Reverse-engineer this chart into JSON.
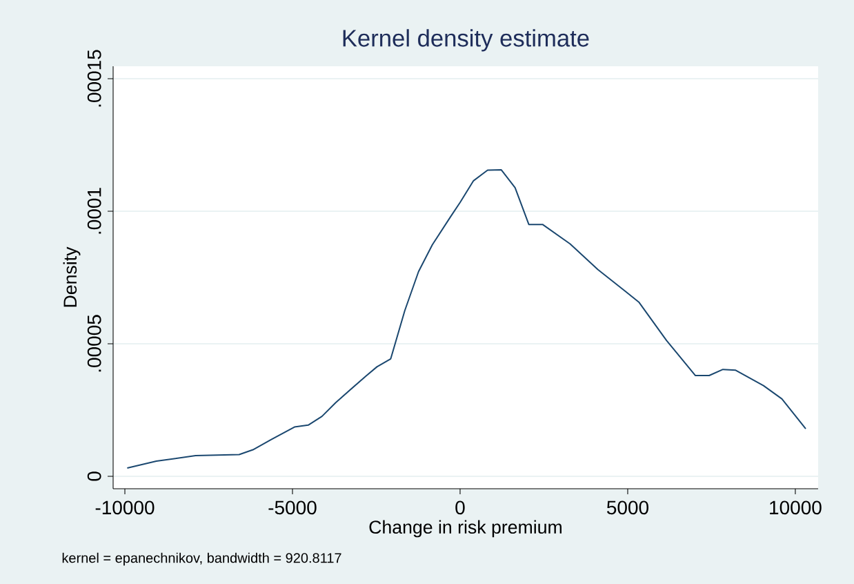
{
  "chart_data": {
    "type": "line",
    "title": "Kernel density estimate",
    "xlabel": "Change in risk premium",
    "ylabel": "Density",
    "annotations": [
      "kernel = epanechnikov, bandwidth = 920.8117"
    ],
    "x": [
      -9930,
      -9060,
      -7890,
      -6590,
      -6180,
      -5630,
      -4940,
      -4530,
      -4120,
      -3710,
      -2820,
      -2480,
      -2070,
      -1650,
      -1240,
      -830,
      -280,
      0,
      400,
      820,
      1230,
      1640,
      2050,
      2460,
      3280,
      4110,
      4930,
      5340,
      6160,
      7020,
      7430,
      7840,
      8220,
      9050,
      9600,
      10310
    ],
    "values": [
      3.1e-06,
      5.7e-06,
      7.8e-06,
      8.2e-06,
      1e-05,
      1.39e-05,
      1.86e-05,
      1.93e-05,
      2.26e-05,
      2.78e-05,
      3.77e-05,
      4.13e-05,
      4.43e-05,
      6.25e-05,
      7.72e-05,
      8.73e-05,
      9.8e-05,
      0.0001033,
      0.0001115,
      0.0001155,
      0.0001156,
      0.0001089,
      9.5e-05,
      9.5e-05,
      8.77e-05,
      7.8e-05,
      6.98e-05,
      6.56e-05,
      5.12e-05,
      3.8e-05,
      3.8e-05,
      4.03e-05,
      4e-05,
      3.42e-05,
      2.92e-05,
      1.79e-05
    ],
    "color": "#1a476f",
    "xlim": [
      -10350,
      10680
    ],
    "ylim": [
      -4.7e-06,
      0.0001547
    ],
    "xticks": [
      -10000,
      -5000,
      0,
      5000,
      10000
    ],
    "yticks": [
      {
        "value": 0,
        "label": "0"
      },
      {
        "value": 5e-05,
        "label": ".00005"
      },
      {
        "value": 0.0001,
        "label": ".0001"
      },
      {
        "value": 0.00015,
        "label": ".00015"
      }
    ],
    "grid": "y"
  }
}
